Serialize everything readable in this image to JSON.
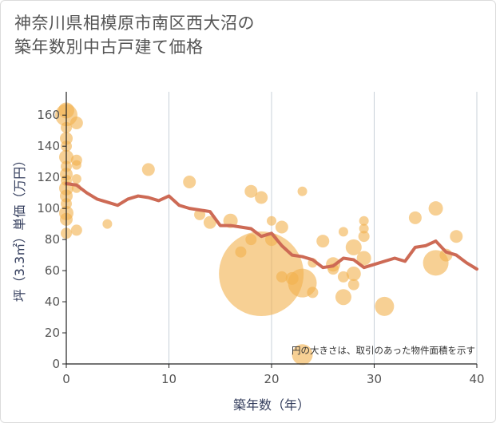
{
  "title_line1": "神奈川県相模原市南区西大沼の",
  "title_line2": "築年数別中古戸建て価格",
  "chart_data": {
    "type": "scatter",
    "title": "神奈川県相模原市南区西大沼の築年数別中古戸建て価格",
    "xlabel": "築年数（年）",
    "ylabel": "坪（3.3㎡）単価（万円）",
    "xlim": [
      0,
      40
    ],
    "ylim": [
      0,
      175
    ],
    "xticks": [
      "0",
      "10",
      "20",
      "30",
      "40"
    ],
    "yticks": [
      "0",
      "20",
      "40",
      "60",
      "80",
      "100",
      "120",
      "140",
      "160"
    ],
    "note": "円の大きさは、取引のあった物件面積を示す",
    "grid": true,
    "colors": {
      "bubble": "#f2b04d",
      "line": "#cd6a55",
      "grid": "#c8d0d8"
    },
    "bubbles": [
      {
        "x": 0,
        "y": 163,
        "s": 10
      },
      {
        "x": 0,
        "y": 160,
        "s": 14
      },
      {
        "x": 0,
        "y": 152,
        "s": 7
      },
      {
        "x": 0,
        "y": 145,
        "s": 8
      },
      {
        "x": 0,
        "y": 140,
        "s": 7
      },
      {
        "x": 0,
        "y": 133,
        "s": 9
      },
      {
        "x": 0,
        "y": 127,
        "s": 7
      },
      {
        "x": 0,
        "y": 122,
        "s": 8
      },
      {
        "x": 0,
        "y": 118,
        "s": 7
      },
      {
        "x": 0,
        "y": 113,
        "s": 9
      },
      {
        "x": 0,
        "y": 108,
        "s": 8
      },
      {
        "x": 0,
        "y": 103,
        "s": 7
      },
      {
        "x": 0,
        "y": 97,
        "s": 9
      },
      {
        "x": 0,
        "y": 93,
        "s": 8
      },
      {
        "x": 0,
        "y": 84,
        "s": 7
      },
      {
        "x": 1,
        "y": 155,
        "s": 8
      },
      {
        "x": 1,
        "y": 131,
        "s": 7
      },
      {
        "x": 1,
        "y": 128,
        "s": 6
      },
      {
        "x": 1,
        "y": 119,
        "s": 6
      },
      {
        "x": 1,
        "y": 113,
        "s": 6
      },
      {
        "x": 1,
        "y": 86,
        "s": 7
      },
      {
        "x": 4,
        "y": 90,
        "s": 6
      },
      {
        "x": 8,
        "y": 125,
        "s": 8
      },
      {
        "x": 12,
        "y": 117,
        "s": 8
      },
      {
        "x": 13,
        "y": 96,
        "s": 7
      },
      {
        "x": 14,
        "y": 91,
        "s": 8
      },
      {
        "x": 16,
        "y": 92,
        "s": 9
      },
      {
        "x": 17,
        "y": 72,
        "s": 7
      },
      {
        "x": 18,
        "y": 111,
        "s": 8
      },
      {
        "x": 18,
        "y": 80,
        "s": 7
      },
      {
        "x": 19,
        "y": 107,
        "s": 8
      },
      {
        "x": 19,
        "y": 58,
        "s": 53
      },
      {
        "x": 20,
        "y": 92,
        "s": 6
      },
      {
        "x": 20,
        "y": 80,
        "s": 8
      },
      {
        "x": 21,
        "y": 88,
        "s": 8
      },
      {
        "x": 21,
        "y": 56,
        "s": 7
      },
      {
        "x": 22,
        "y": 55,
        "s": 8
      },
      {
        "x": 23,
        "y": 111,
        "s": 6
      },
      {
        "x": 23,
        "y": 52,
        "s": 18
      },
      {
        "x": 23,
        "y": 6,
        "s": 13
      },
      {
        "x": 24,
        "y": 65,
        "s": 6
      },
      {
        "x": 24,
        "y": 46,
        "s": 7
      },
      {
        "x": 25,
        "y": 79,
        "s": 8
      },
      {
        "x": 26,
        "y": 64,
        "s": 9
      },
      {
        "x": 26,
        "y": 61,
        "s": 7
      },
      {
        "x": 27,
        "y": 85,
        "s": 6
      },
      {
        "x": 27,
        "y": 56,
        "s": 7
      },
      {
        "x": 27,
        "y": 43,
        "s": 10
      },
      {
        "x": 28,
        "y": 75,
        "s": 10
      },
      {
        "x": 28,
        "y": 58,
        "s": 9
      },
      {
        "x": 28,
        "y": 51,
        "s": 7
      },
      {
        "x": 29,
        "y": 92,
        "s": 6
      },
      {
        "x": 29,
        "y": 87,
        "s": 6
      },
      {
        "x": 29,
        "y": 82,
        "s": 7
      },
      {
        "x": 29,
        "y": 68,
        "s": 9
      },
      {
        "x": 31,
        "y": 37,
        "s": 12
      },
      {
        "x": 34,
        "y": 94,
        "s": 8
      },
      {
        "x": 36,
        "y": 100,
        "s": 9
      },
      {
        "x": 36,
        "y": 65,
        "s": 16
      },
      {
        "x": 37,
        "y": 70,
        "s": 8
      },
      {
        "x": 38,
        "y": 82,
        "s": 8
      }
    ],
    "line": {
      "x": [
        0,
        1,
        2,
        3,
        4,
        5,
        6,
        7,
        8,
        9,
        10,
        11,
        12,
        13,
        14,
        15,
        16,
        17,
        18,
        19,
        20,
        21,
        22,
        23,
        24,
        25,
        26,
        27,
        28,
        29,
        30,
        31,
        32,
        33,
        34,
        35,
        36,
        37,
        38,
        39,
        40
      ],
      "y": [
        116,
        115,
        110,
        106,
        104,
        102,
        106,
        108,
        107,
        105,
        108,
        102,
        100,
        99,
        98,
        89,
        89,
        88,
        87,
        82,
        84,
        76,
        70,
        69,
        67,
        62,
        63,
        68,
        67,
        62,
        64,
        66,
        68,
        66,
        75,
        76,
        79,
        72,
        70,
        65,
        61
      ]
    }
  }
}
